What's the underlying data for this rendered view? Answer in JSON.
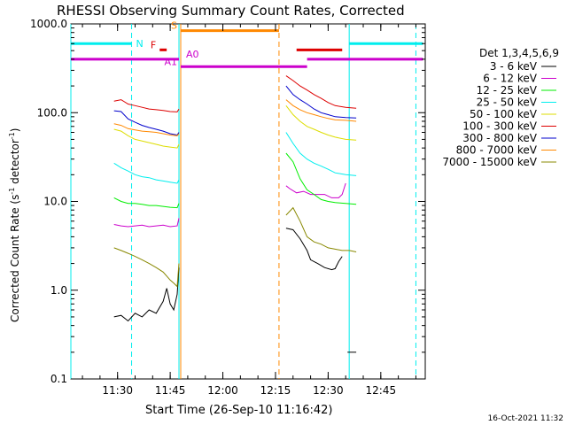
{
  "chart_data": {
    "type": "line",
    "title": "RHESSI Observing Summary Count Rates, Corrected",
    "xlabel": "Start Time (26-Sep-10 11:16:42)",
    "ylabel_main": "Corrected Count Rate (s",
    "ylabel_sup1": "-1",
    "ylabel_mid": " detector",
    "ylabel_sup2": "-1",
    "ylabel_end": ")",
    "yscale": "log",
    "ylim": [
      0.1,
      1000
    ],
    "xlim": [
      "11:16:42",
      "12:57:40"
    ],
    "y_ticks": [
      {
        "value": 1000,
        "label": "1000.0"
      },
      {
        "value": 100,
        "label": "100.0"
      },
      {
        "value": 10,
        "label": "10.0"
      },
      {
        "value": 1,
        "label": "1.0"
      },
      {
        "value": 0.1,
        "label": "0.1"
      }
    ],
    "x_ticks": [
      {
        "time": "11:30",
        "label": "11:30"
      },
      {
        "time": "11:45",
        "label": "11:45"
      },
      {
        "time": "12:00",
        "label": "12:00"
      },
      {
        "time": "12:15",
        "label": "12:15"
      },
      {
        "time": "12:30",
        "label": "12:30"
      },
      {
        "time": "12:45",
        "label": "12:45"
      }
    ],
    "legend_title": "Det 1,3,4,5,6,9",
    "legend_position": "right",
    "series": [
      {
        "name": "3 - 6 keV",
        "color": "#000000",
        "points": [
          [
            "11:29",
            0.5
          ],
          [
            "11:31",
            0.52
          ],
          [
            "11:33",
            0.45
          ],
          [
            "11:35",
            0.55
          ],
          [
            "11:37",
            0.5
          ],
          [
            "11:39",
            0.6
          ],
          [
            "11:41",
            0.55
          ],
          [
            "11:43",
            0.75
          ],
          [
            "11:44",
            1.05
          ],
          [
            "11:45",
            0.7
          ],
          [
            "11:46",
            0.6
          ],
          [
            "11:47",
            0.9
          ],
          [
            "11:47.5",
            1.8
          ],
          null,
          [
            "12:18",
            5.0
          ],
          [
            "12:20",
            4.8
          ],
          [
            "12:22",
            3.8
          ],
          [
            "12:24",
            2.8
          ],
          [
            "12:25",
            2.2
          ],
          [
            "12:27",
            2.0
          ],
          [
            "12:29",
            1.8
          ],
          [
            "12:31",
            1.7
          ],
          [
            "12:32",
            1.75
          ],
          [
            "12:33",
            2.1
          ],
          [
            "12:34",
            2.4
          ],
          null,
          [
            "12:35.5",
            0.2
          ],
          [
            "12:38",
            0.2
          ]
        ]
      },
      {
        "name": "6 - 12 keV",
        "color": "#cc00cc",
        "points": [
          [
            "11:29",
            5.5
          ],
          [
            "11:31",
            5.3
          ],
          [
            "11:33",
            5.2
          ],
          [
            "11:35",
            5.3
          ],
          [
            "11:37",
            5.4
          ],
          [
            "11:39",
            5.2
          ],
          [
            "11:41",
            5.3
          ],
          [
            "11:43",
            5.4
          ],
          [
            "11:45",
            5.2
          ],
          [
            "11:47",
            5.3
          ],
          [
            "11:47.5",
            6.5
          ],
          null,
          [
            "12:18",
            15.0
          ],
          [
            "12:19",
            14.0
          ],
          [
            "12:21",
            12.5
          ],
          [
            "12:23",
            13.0
          ],
          [
            "12:25",
            12.0
          ],
          [
            "12:27",
            12.0
          ],
          [
            "12:29",
            12.0
          ],
          [
            "12:31",
            11.0
          ],
          [
            "12:33",
            11.0
          ],
          [
            "12:34",
            12.0
          ],
          [
            "12:35",
            16.0
          ]
        ]
      },
      {
        "name": "12 - 25 keV",
        "color": "#00ee00",
        "points": [
          [
            "11:29",
            11.0
          ],
          [
            "11:31",
            10.0
          ],
          [
            "11:33",
            9.5
          ],
          [
            "11:35",
            9.5
          ],
          [
            "11:37",
            9.3
          ],
          [
            "11:39",
            9.0
          ],
          [
            "11:41",
            9.0
          ],
          [
            "11:43",
            8.8
          ],
          [
            "11:45",
            8.6
          ],
          [
            "11:47",
            8.5
          ],
          [
            "11:47.5",
            9.5
          ],
          null,
          [
            "12:18",
            35.0
          ],
          [
            "12:20",
            28.0
          ],
          [
            "12:22",
            18.0
          ],
          [
            "12:24",
            13.5
          ],
          [
            "12:26",
            12.0
          ],
          [
            "12:28",
            10.5
          ],
          [
            "12:30",
            10.0
          ],
          [
            "12:32",
            9.7
          ],
          [
            "12:35",
            9.5
          ],
          [
            "12:38",
            9.3
          ]
        ]
      },
      {
        "name": "25 - 50 keV",
        "color": "#00eeee",
        "points": [
          [
            "11:29",
            27.0
          ],
          [
            "11:31",
            24.0
          ],
          [
            "11:33",
            22.0
          ],
          [
            "11:35",
            20.0
          ],
          [
            "11:37",
            19.0
          ],
          [
            "11:39",
            18.5
          ],
          [
            "11:41",
            17.5
          ],
          [
            "11:43",
            17.0
          ],
          [
            "11:45",
            16.5
          ],
          [
            "11:47",
            16.0
          ],
          [
            "11:47.5",
            17.5
          ],
          null,
          [
            "12:18",
            60.0
          ],
          [
            "12:20",
            45.0
          ],
          [
            "12:22",
            35.0
          ],
          [
            "12:24",
            30.0
          ],
          [
            "12:26",
            27.0
          ],
          [
            "12:28",
            25.0
          ],
          [
            "12:30",
            23.0
          ],
          [
            "12:32",
            21.0
          ],
          [
            "12:35",
            20.0
          ],
          [
            "12:38",
            19.5
          ]
        ]
      },
      {
        "name": "50 - 100 keV",
        "color": "#dddd00",
        "points": [
          [
            "11:29",
            65.0
          ],
          [
            "11:31",
            62.0
          ],
          [
            "11:33",
            55.0
          ],
          [
            "11:35",
            50.0
          ],
          [
            "11:37",
            48.0
          ],
          [
            "11:39",
            46.0
          ],
          [
            "11:41",
            44.0
          ],
          [
            "11:43",
            42.0
          ],
          [
            "11:45",
            41.0
          ],
          [
            "11:47",
            40.0
          ],
          [
            "11:47.5",
            44.0
          ],
          null,
          [
            "12:18",
            120.0
          ],
          [
            "12:20",
            95.0
          ],
          [
            "12:22",
            80.0
          ],
          [
            "12:24",
            70.0
          ],
          [
            "12:26",
            65.0
          ],
          [
            "12:28",
            60.0
          ],
          [
            "12:30",
            56.0
          ],
          [
            "12:32",
            53.0
          ],
          [
            "12:35",
            50.0
          ],
          [
            "12:38",
            49.0
          ]
        ]
      },
      {
        "name": "100 - 300 keV",
        "color": "#dd0000",
        "points": [
          [
            "11:29",
            135.0
          ],
          [
            "11:31",
            140.0
          ],
          [
            "11:33",
            125.0
          ],
          [
            "11:35",
            120.0
          ],
          [
            "11:37",
            115.0
          ],
          [
            "11:39",
            110.0
          ],
          [
            "11:41",
            108.0
          ],
          [
            "11:43",
            106.0
          ],
          [
            "11:45",
            103.0
          ],
          [
            "11:47",
            102.0
          ],
          [
            "11:47.5",
            110.0
          ],
          null,
          [
            "12:18",
            260.0
          ],
          [
            "12:20",
            230.0
          ],
          [
            "12:22",
            200.0
          ],
          [
            "12:24",
            180.0
          ],
          [
            "12:26",
            160.0
          ],
          [
            "12:28",
            145.0
          ],
          [
            "12:30",
            130.0
          ],
          [
            "12:32",
            120.0
          ],
          [
            "12:35",
            115.0
          ],
          [
            "12:38",
            112.0
          ]
        ]
      },
      {
        "name": "300 - 800 keV",
        "color": "#0000cc",
        "points": [
          [
            "11:29",
            105.0
          ],
          [
            "11:31",
            103.0
          ],
          [
            "11:33",
            85.0
          ],
          [
            "11:35",
            78.0
          ],
          [
            "11:37",
            72.0
          ],
          [
            "11:39",
            68.0
          ],
          [
            "11:41",
            65.0
          ],
          [
            "11:43",
            62.0
          ],
          [
            "11:45",
            58.0
          ],
          [
            "11:47",
            56.0
          ],
          [
            "11:47.5",
            60.0
          ],
          null,
          [
            "12:18",
            200.0
          ],
          [
            "12:20",
            160.0
          ],
          [
            "12:22",
            140.0
          ],
          [
            "12:24",
            125.0
          ],
          [
            "12:26",
            110.0
          ],
          [
            "12:28",
            100.0
          ],
          [
            "12:30",
            95.0
          ],
          [
            "12:32",
            90.0
          ],
          [
            "12:35",
            88.0
          ],
          [
            "12:38",
            87.0
          ]
        ]
      },
      {
        "name": "800 - 7000 keV",
        "color": "#ff8800",
        "points": [
          [
            "11:29",
            75.0
          ],
          [
            "11:31",
            72.0
          ],
          [
            "11:33",
            66.0
          ],
          [
            "11:35",
            64.0
          ],
          [
            "11:37",
            62.0
          ],
          [
            "11:39",
            61.0
          ],
          [
            "11:41",
            60.0
          ],
          [
            "11:43",
            58.0
          ],
          [
            "11:45",
            56.0
          ],
          [
            "11:47",
            55.0
          ],
          [
            "11:47.5",
            58.0
          ],
          null,
          [
            "12:18",
            140.0
          ],
          [
            "12:20",
            120.0
          ],
          [
            "12:22",
            108.0
          ],
          [
            "12:24",
            100.0
          ],
          [
            "12:26",
            95.0
          ],
          [
            "12:28",
            90.0
          ],
          [
            "12:30",
            86.0
          ],
          [
            "12:32",
            83.0
          ],
          [
            "12:35",
            82.0
          ],
          [
            "12:38",
            80.0
          ]
        ]
      },
      {
        "name": "7000 - 15000 keV",
        "color": "#888800",
        "points": [
          [
            "11:29",
            3.0
          ],
          [
            "11:31",
            2.8
          ],
          [
            "11:33",
            2.6
          ],
          [
            "11:35",
            2.4
          ],
          [
            "11:37",
            2.2
          ],
          [
            "11:39",
            2.0
          ],
          [
            "11:41",
            1.8
          ],
          [
            "11:43",
            1.6
          ],
          [
            "11:45",
            1.3
          ],
          [
            "11:46",
            1.2
          ],
          [
            "11:47",
            1.1
          ],
          [
            "11:47.5",
            2.0
          ],
          null,
          [
            "12:18",
            7.0
          ],
          [
            "12:20",
            8.5
          ],
          [
            "12:22",
            6.0
          ],
          [
            "12:24",
            4.0
          ],
          [
            "12:26",
            3.5
          ],
          [
            "12:28",
            3.3
          ],
          [
            "12:30",
            3.0
          ],
          [
            "12:32",
            2.9
          ],
          [
            "12:34",
            2.8
          ],
          [
            "12:36",
            2.8
          ],
          [
            "12:38",
            2.7
          ]
        ]
      }
    ],
    "flag_bars": [
      {
        "label": "N",
        "color": "#00eeee",
        "segments": [
          [
            "11:16:42",
            "11:34"
          ],
          [
            "12:36",
            "12:57"
          ]
        ],
        "y": 600
      },
      {
        "label": "F",
        "color": "#dd0000",
        "segments": [
          [
            "11:42",
            "11:44"
          ],
          [
            "12:21",
            "12:34"
          ]
        ],
        "y": 510
      },
      {
        "label": "S",
        "color": "#ff8800",
        "segments": [
          [
            "11:48",
            "12:16"
          ]
        ],
        "y": 840
      },
      {
        "label": "A0",
        "color": "#cc00cc",
        "segments": [
          [
            "11:16:42",
            "11:47.5"
          ],
          [
            "12:24",
            "12:57"
          ]
        ],
        "y": 400
      },
      {
        "label": "A1",
        "color": "#cc00cc",
        "segments": [
          [
            "11:48",
            "12:24"
          ]
        ],
        "y": 330
      }
    ],
    "vlines": [
      {
        "time": "11:16:42",
        "color": "#00eeee",
        "style": "solid"
      },
      {
        "time": "11:34",
        "color": "#00eeee",
        "style": "dashed"
      },
      {
        "time": "11:47.5",
        "color": "#00eeee",
        "style": "solid"
      },
      {
        "time": "11:48",
        "color": "#ff8800",
        "style": "solid"
      },
      {
        "time": "12:16",
        "color": "#ff8800",
        "style": "dashed"
      },
      {
        "time": "12:36",
        "color": "#00eeee",
        "style": "solid"
      },
      {
        "time": "12:55",
        "color": "#00eeee",
        "style": "dashed"
      }
    ]
  },
  "timestamp": "16-Oct-2021 11:32"
}
